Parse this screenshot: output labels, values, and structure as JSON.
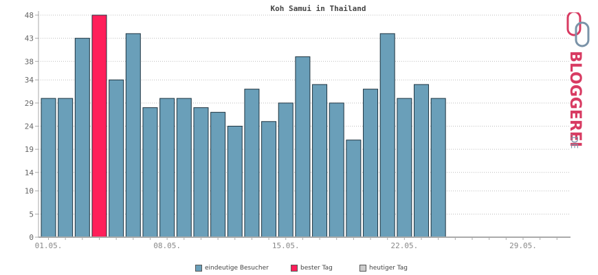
{
  "chart_data": {
    "type": "bar",
    "title": "Koh Samui in Thailand",
    "y_ticks": [
      "0",
      "5",
      "10",
      "14",
      "19",
      "24",
      "29",
      "34",
      "38",
      "43",
      "48"
    ],
    "ylim": [
      0,
      48
    ],
    "x_ticks": [
      "01.05.",
      "08.05.",
      "15.05.",
      "22.05.",
      "29.05."
    ],
    "series": [
      {
        "name": "eindeutige Besucher",
        "values": [
          30,
          30,
          43,
          48,
          34,
          44,
          28,
          30,
          30,
          28,
          27,
          24,
          32,
          25,
          29,
          39,
          33,
          29,
          21,
          32,
          44,
          30,
          33,
          30
        ]
      }
    ],
    "highlight_index": 3,
    "colors": {
      "bar": "#6a9fb9",
      "best_day": "#ff1f5a",
      "today": "#cccccc",
      "bar_stroke": "#1f3440",
      "grid": "#bbbbbb",
      "axis": "#aaaaaa"
    },
    "grid": true,
    "legend_position": "bottom-center"
  },
  "legend": {
    "items": [
      {
        "label": "eindeutige Besucher",
        "color": "#6a9fb9"
      },
      {
        "label": "bester Tag",
        "color": "#ff1f5a"
      },
      {
        "label": "heutiger Tag",
        "color": "#cccccc"
      }
    ]
  },
  "logo": {
    "text": "BLOGGEREI",
    "suffix": ".DE"
  }
}
